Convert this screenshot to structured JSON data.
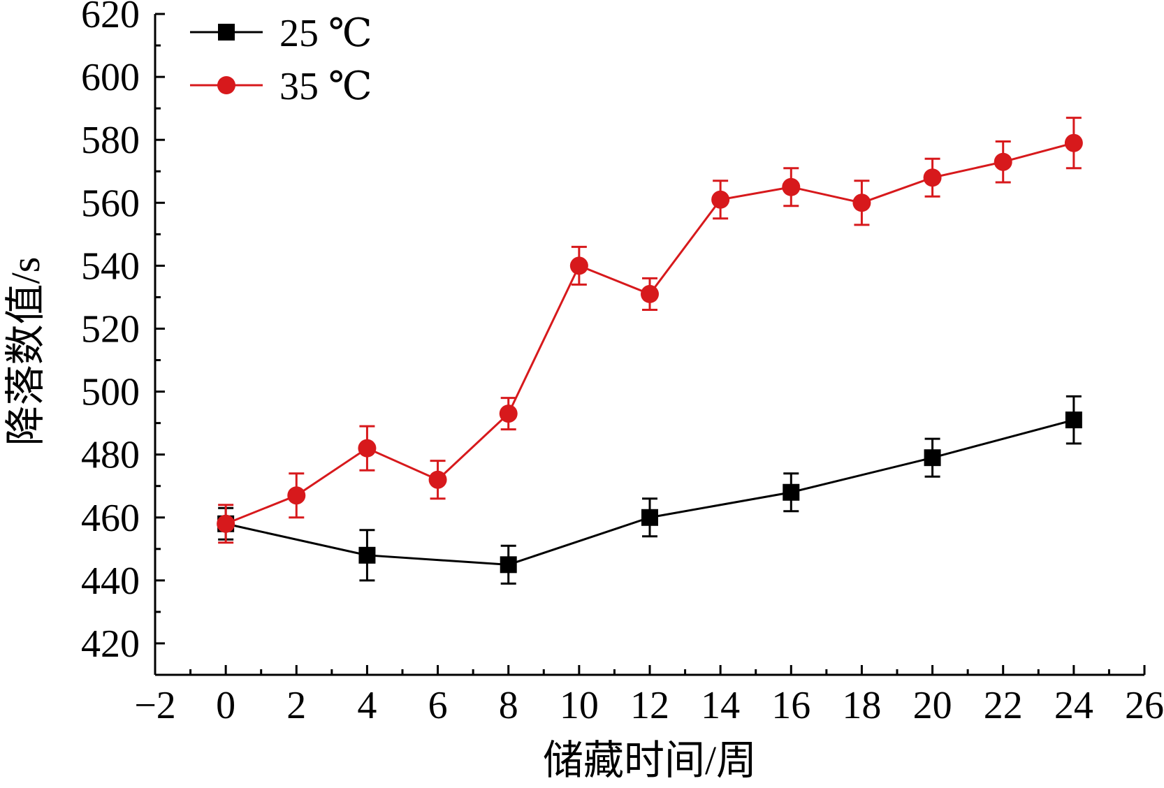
{
  "chart_data": {
    "type": "line",
    "xlabel": "储藏时间/周",
    "ylabel": "降落数值/s",
    "xlim": [
      -2,
      26
    ],
    "ylim": [
      410,
      620
    ],
    "x_ticks": [
      -2,
      0,
      2,
      4,
      6,
      8,
      10,
      12,
      14,
      16,
      18,
      20,
      22,
      24,
      26
    ],
    "x_tick_labels": [
      "−2",
      "0",
      "2",
      "4",
      "6",
      "8",
      "10",
      "12",
      "14",
      "16",
      "18",
      "20",
      "22",
      "24",
      "26"
    ],
    "y_ticks": [
      420,
      440,
      460,
      480,
      500,
      520,
      540,
      560,
      580,
      600,
      620
    ],
    "y_tick_labels": [
      "420",
      "440",
      "460",
      "480",
      "500",
      "520",
      "540",
      "560",
      "580",
      "600",
      "620"
    ],
    "grid": false,
    "legend_position": "top-left",
    "series": [
      {
        "name": "25 ℃",
        "color": "#000000",
        "marker": "square",
        "x": [
          0,
          4,
          8,
          12,
          16,
          20,
          24
        ],
        "values": [
          458,
          448,
          445,
          460,
          468,
          479,
          491
        ],
        "errors": [
          5,
          8,
          6,
          6,
          6,
          6,
          7.5
        ]
      },
      {
        "name": "35 ℃",
        "color": "#d7191c",
        "marker": "circle",
        "x": [
          0,
          2,
          4,
          6,
          8,
          10,
          12,
          14,
          16,
          18,
          20,
          22,
          24
        ],
        "values": [
          458,
          467,
          482,
          472,
          493,
          540,
          531,
          561,
          565,
          560,
          568,
          573,
          579
        ],
        "errors": [
          6,
          7,
          7,
          6,
          5,
          6,
          5,
          6,
          6,
          7,
          6,
          6.5,
          8
        ]
      }
    ]
  }
}
